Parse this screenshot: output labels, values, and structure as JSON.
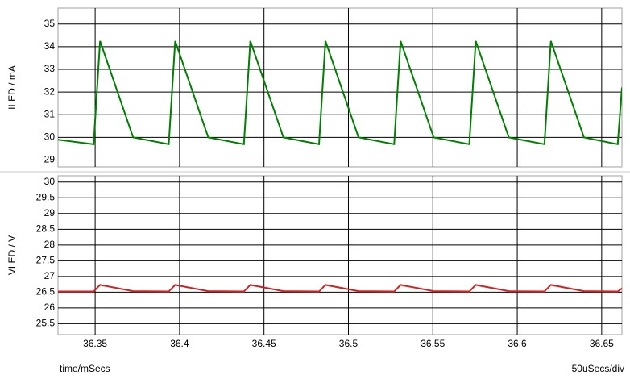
{
  "chart_data": [
    {
      "type": "line",
      "y_label": "ILED / mA",
      "x": [
        36.328,
        36.3491,
        36.3529,
        36.3725,
        36.3936,
        36.3974,
        36.417,
        36.4381,
        36.4419,
        36.4615,
        36.4826,
        36.4864,
        36.506,
        36.5271,
        36.5309,
        36.5505,
        36.5716,
        36.5754,
        36.595,
        36.6161,
        36.6199,
        36.6395,
        36.6595,
        36.662
      ],
      "series": [
        {
          "color": "#008000",
          "values": [
            29.9,
            29.7,
            34.25,
            30.0,
            29.7,
            34.25,
            30.0,
            29.7,
            34.25,
            30.0,
            29.7,
            34.25,
            30.0,
            29.7,
            34.25,
            30.0,
            29.7,
            34.25,
            30.0,
            29.7,
            34.25,
            30.0,
            29.7,
            32.2
          ]
        }
      ],
      "xlim": [
        36.328,
        36.662
      ],
      "xticks": [
        36.35,
        36.4,
        36.45,
        36.5,
        36.55,
        36.6,
        36.65
      ],
      "ylim": [
        28.7,
        35.7
      ],
      "yticks": [
        29,
        30,
        31,
        32,
        33,
        34,
        35
      ],
      "grid": true
    },
    {
      "type": "line",
      "y_label": "VLED / V",
      "x_label": "time/mSecs",
      "annotation": "50uSecs/div",
      "x": [
        36.328,
        36.3491,
        36.3529,
        36.3725,
        36.3936,
        36.3974,
        36.417,
        36.4381,
        36.4419,
        36.4615,
        36.4826,
        36.4864,
        36.506,
        36.5271,
        36.5309,
        36.5505,
        36.5716,
        36.5754,
        36.595,
        36.6161,
        36.6199,
        36.6395,
        36.6595,
        36.662
      ],
      "series": [
        {
          "color": "#d42020",
          "values": [
            26.52,
            26.52,
            26.73,
            26.53,
            26.52,
            26.73,
            26.53,
            26.52,
            26.73,
            26.53,
            26.52,
            26.73,
            26.53,
            26.52,
            26.73,
            26.53,
            26.52,
            26.73,
            26.53,
            26.52,
            26.73,
            26.53,
            26.52,
            26.62
          ]
        }
      ],
      "xlim": [
        36.328,
        36.662
      ],
      "xticks": [
        36.35,
        36.4,
        36.45,
        36.5,
        36.55,
        36.6,
        36.65
      ],
      "ylim": [
        25.15,
        30.2
      ],
      "yticks": [
        25.5,
        26,
        26.5,
        27,
        27.5,
        28,
        28.5,
        29,
        29.5,
        30
      ],
      "grid": true
    }
  ]
}
